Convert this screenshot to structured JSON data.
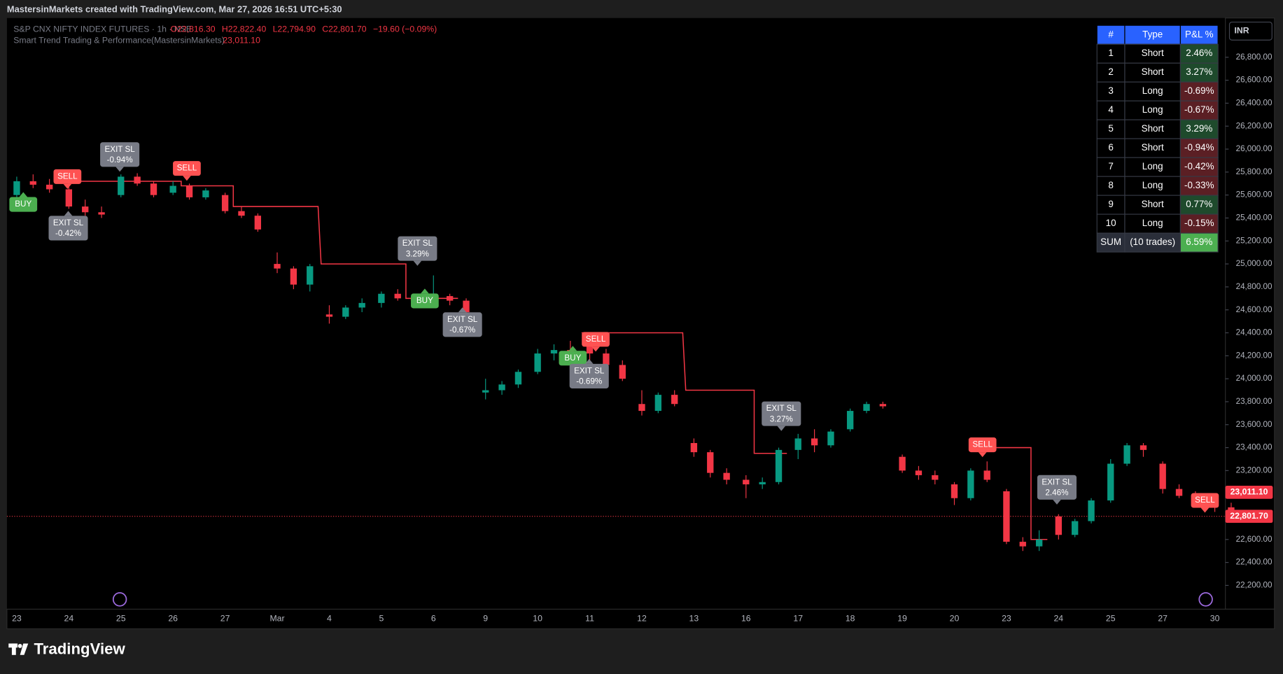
{
  "watermark": "MastersinMarkets created with TradingView.com, Mar 27, 2026 16:51 UTC+5:30",
  "legend": {
    "symbol": "S&P CNX NIFTY INDEX FUTURES · 1h · NSE",
    "open": "O22,816.30",
    "high": "H22,822.40",
    "low": "L22,794.90",
    "close": "C22,801.70",
    "change": "−19.60 (−0.09%)",
    "indicator": "Smart Trend Trading & Performance(MastersinMarkets)",
    "indicator_value": "23,011.10"
  },
  "currency": "INR",
  "chart_data": {
    "type": "candlestick",
    "categories": [
      "23",
      null,
      null,
      "24",
      null,
      null,
      "25",
      null,
      null,
      "26",
      null,
      null,
      "27",
      null,
      null,
      "Mar",
      null,
      null,
      "4",
      null,
      null,
      "5",
      null,
      null,
      "6",
      null,
      null,
      "9",
      null,
      null,
      "10",
      null,
      null,
      "11",
      null,
      null,
      "12",
      null,
      null,
      "13",
      null,
      null,
      "16",
      null,
      null,
      "17",
      null,
      null,
      "18",
      null,
      null,
      "19",
      null,
      null,
      "20",
      null,
      null,
      "23",
      null,
      null,
      "24",
      null,
      null,
      "25",
      null,
      null,
      "27",
      null,
      null,
      "30",
      null,
      null
    ],
    "open": [
      25600,
      25720,
      25690,
      25650,
      25500,
      25450,
      25600,
      25760,
      25700,
      25620,
      25680,
      25580,
      25600,
      25460,
      25420,
      25000,
      24960,
      24820,
      24560,
      24540,
      24620,
      24660,
      24740,
      24700,
      24680,
      24720,
      24680,
      23880,
      23900,
      23950,
      24060,
      24220,
      24250,
      24300,
      24220,
      24120,
      23780,
      23720,
      23860,
      23440,
      23360,
      23180,
      23120,
      23080,
      23100,
      23380,
      23480,
      23420,
      23560,
      23720,
      23780,
      23320,
      23200,
      23160,
      23080,
      22960,
      23200,
      23020,
      22580,
      22540,
      22800,
      22640,
      22760,
      22940,
      23260,
      23420,
      23260,
      23040,
      22980,
      22920,
      22880,
      22820
    ],
    "high": [
      25760,
      25780,
      25740,
      25700,
      25560,
      25500,
      25780,
      25790,
      25720,
      25720,
      25700,
      25660,
      25620,
      25500,
      25440,
      25100,
      24980,
      25000,
      24640,
      24640,
      24700,
      24760,
      24780,
      24740,
      24900,
      24740,
      24700,
      24000,
      23980,
      24080,
      24260,
      24300,
      24330,
      24360,
      24260,
      24160,
      23900,
      23880,
      23900,
      23480,
      23380,
      23220,
      23160,
      23140,
      23400,
      23520,
      23560,
      23560,
      23740,
      23800,
      23800,
      23340,
      23240,
      23200,
      23100,
      23220,
      23280,
      23040,
      22620,
      22680,
      22820,
      22780,
      22960,
      23300,
      23440,
      23440,
      23280,
      23080,
      23020,
      22960,
      22920,
      22850
    ],
    "low": [
      25560,
      25660,
      25620,
      25480,
      25420,
      25400,
      25580,
      25680,
      25580,
      25600,
      25560,
      25560,
      25440,
      25400,
      25280,
      24920,
      24780,
      24760,
      24480,
      24520,
      24580,
      24620,
      24680,
      24640,
      24650,
      24640,
      24560,
      23820,
      23860,
      23920,
      24040,
      24160,
      24180,
      24160,
      24080,
      23980,
      23680,
      23700,
      23760,
      23320,
      23140,
      23080,
      22960,
      23040,
      23080,
      23300,
      23360,
      23400,
      23540,
      23700,
      23740,
      23180,
      23120,
      23080,
      22900,
      22940,
      23100,
      22560,
      22500,
      22500,
      22600,
      22620,
      22740,
      22920,
      23240,
      23320,
      23000,
      22960,
      22880,
      22840,
      22800,
      22780
    ],
    "close": [
      25720,
      25690,
      25650,
      25500,
      25450,
      25430,
      25760,
      25700,
      25600,
      25680,
      25580,
      25640,
      25460,
      25420,
      25300,
      24960,
      24820,
      24980,
      24540,
      24620,
      24660,
      24740,
      24700,
      24680,
      24720,
      24680,
      24580,
      23900,
      23950,
      24060,
      24220,
      24250,
      24200,
      24220,
      24120,
      24000,
      23720,
      23860,
      23780,
      23360,
      23180,
      23120,
      23080,
      23100,
      23380,
      23480,
      23420,
      23540,
      23720,
      23780,
      23760,
      23200,
      23160,
      23120,
      22960,
      23200,
      23120,
      22580,
      22540,
      22600,
      22640,
      22760,
      22940,
      23260,
      23420,
      23380,
      23040,
      22980,
      22920,
      22880,
      22820,
      22801.7
    ],
    "up_color": "#089981",
    "down_color": "#f23645",
    "trail": {
      "color": "#f23645",
      "values": [
        null,
        null,
        null,
        25720,
        25720,
        25720,
        25720,
        25720,
        25720,
        25720,
        25680,
        25680,
        25680,
        25500,
        25500,
        25500,
        25500,
        25500,
        25000,
        25000,
        25000,
        25000,
        25000,
        24700,
        24700,
        24700,
        null,
        null,
        null,
        null,
        null,
        null,
        null,
        24400,
        24400,
        24400,
        24400,
        24400,
        24400,
        23900,
        23900,
        23900,
        23900,
        23350,
        23350,
        null,
        null,
        null,
        null,
        null,
        null,
        null,
        null,
        null,
        null,
        null,
        23400,
        23400,
        23400,
        22600,
        null,
        null,
        null,
        null,
        null,
        null,
        null,
        null,
        null,
        null,
        null,
        null
      ]
    },
    "ylim": [
      21993,
      27142
    ],
    "yticks": [
      {
        "value": 22200,
        "label": "22,200.00"
      },
      {
        "value": 22400,
        "label": "22,400.00"
      },
      {
        "value": 22600,
        "label": "22,600.00"
      },
      {
        "value": 22800,
        "label": "22,800.00"
      },
      {
        "value": 23000,
        "label": "23,000.00"
      },
      {
        "value": 23200,
        "label": "23,200.00"
      },
      {
        "value": 23400,
        "label": "23,400.00"
      },
      {
        "value": 23600,
        "label": "23,600.00"
      },
      {
        "value": 23800,
        "label": "23,800.00"
      },
      {
        "value": 24000,
        "label": "24,000.00"
      },
      {
        "value": 24200,
        "label": "24,200.00"
      },
      {
        "value": 24400,
        "label": "24,400.00"
      },
      {
        "value": 24600,
        "label": "24,600.00"
      },
      {
        "value": 24800,
        "label": "24,800.00"
      },
      {
        "value": 25000,
        "label": "25,000.00"
      },
      {
        "value": 25200,
        "label": "25,200.00"
      },
      {
        "value": 25400,
        "label": "25,400.00"
      },
      {
        "value": 25600,
        "label": "25,600.00"
      },
      {
        "value": 25800,
        "label": "25,800.00"
      },
      {
        "value": 26000,
        "label": "26,000.00"
      },
      {
        "value": 26200,
        "label": "26,200.00"
      },
      {
        "value": 26400,
        "label": "26,400.00"
      },
      {
        "value": 26600,
        "label": "26,600.00"
      },
      {
        "value": 26800,
        "label": "26,800.00"
      }
    ],
    "price_labels": [
      {
        "value": 23011.1,
        "label": "23,011.10",
        "color": "#f23645"
      },
      {
        "value": 22801.7,
        "label": "22,801.70",
        "color": "#f23645"
      }
    ]
  },
  "signals": [
    {
      "text": "BUY",
      "color": "#4caf50"
    },
    {
      "text": "SELL",
      "color": "#ff5252"
    },
    {
      "text": "EXIT SL",
      "pnl": "-0.42%",
      "color": "#787b86"
    },
    {
      "text": "EXIT SL",
      "pnl": "-0.94%",
      "color": "#787b86"
    },
    {
      "text": "SELL",
      "color": "#ff5252"
    },
    {
      "text": "EXIT SL",
      "pnl": "3.29%",
      "color": "#787b86"
    },
    {
      "text": "BUY",
      "color": "#4caf50"
    },
    {
      "text": "EXIT SL",
      "pnl": "-0.67%",
      "color": "#787b86"
    },
    {
      "text": "SELL",
      "color": "#ff5252"
    },
    {
      "text": "BUY",
      "color": "#4caf50"
    },
    {
      "text": "EXIT SL",
      "pnl": "-0.69%",
      "color": "#787b86"
    },
    {
      "text": "EXIT SL",
      "pnl": "3.27%",
      "color": "#787b86"
    },
    {
      "text": "SELL",
      "color": "#ff5252"
    },
    {
      "text": "EXIT SL",
      "pnl": "2.46%",
      "color": "#787b86"
    },
    {
      "text": "SELL",
      "color": "#ff5252"
    }
  ],
  "table": {
    "header": [
      "#",
      "Type",
      "P&L %"
    ],
    "rows": [
      [
        "1",
        "Short",
        "2.46%"
      ],
      [
        "2",
        "Short",
        "3.27%"
      ],
      [
        "3",
        "Long",
        "-0.69%"
      ],
      [
        "4",
        "Long",
        "-0.67%"
      ],
      [
        "5",
        "Short",
        "3.29%"
      ],
      [
        "6",
        "Short",
        "-0.94%"
      ],
      [
        "7",
        "Long",
        "-0.42%"
      ],
      [
        "8",
        "Long",
        "-0.33%"
      ],
      [
        "9",
        "Short",
        "0.77%"
      ],
      [
        "10",
        "Long",
        "-0.15%"
      ],
      [
        "SUM",
        "(10 trades)",
        "6.59%"
      ]
    ]
  },
  "footer": "TradingView"
}
